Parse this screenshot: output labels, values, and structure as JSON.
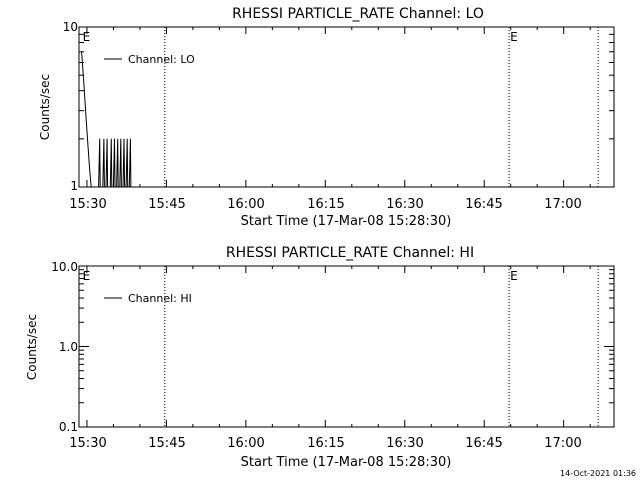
{
  "chart_data": [
    {
      "type": "line",
      "title": "RHESSI PARTICLE_RATE Channel: LO",
      "xlabel": "Start Time (17-Mar-08 15:28:30)",
      "ylabel": "Counts/sec",
      "y_scale": "log",
      "ylim": [
        1,
        10
      ],
      "y_ticks": [
        "1",
        "10"
      ],
      "x_ticks": [
        "15:30",
        "15:45",
        "16:00",
        "16:15",
        "16:30",
        "16:45",
        "17:00"
      ],
      "x_tick_minutes": [
        0,
        15,
        30,
        45,
        60,
        75,
        90
      ],
      "xlim_minutes": [
        -1.5,
        99.5
      ],
      "legend": "Channel: LO",
      "legend_position": "top-left",
      "markers": [
        {
          "label": "E",
          "minute": -1.0,
          "line": false
        },
        {
          "label": "",
          "minute": 14.7,
          "line": true
        },
        {
          "label": "E",
          "minute": 79.7,
          "line": true
        },
        {
          "label": "",
          "minute": 96.5,
          "line": true
        }
      ],
      "series": [
        {
          "x": [
            -1.0,
            -0.6,
            -0.2,
            0.2,
            0.5,
            0.8,
            1.0,
            1.1,
            2.2,
            2.4,
            2.5,
            3.0,
            3.2,
            3.3,
            3.6,
            3.8,
            3.9,
            4.4,
            4.6,
            4.7,
            5.0,
            5.2,
            5.3,
            5.6,
            5.8,
            5.9,
            6.2,
            6.4,
            6.5,
            6.8,
            7.0,
            7.1,
            7.4,
            7.6,
            7.7,
            8.0,
            8.2,
            8.3,
            9.8
          ],
          "y": [
            7,
            4.5,
            2.8,
            1.8,
            1.3,
            1,
            1,
            1,
            1,
            2,
            1,
            1,
            2,
            1,
            1,
            2,
            1,
            1,
            2,
            1,
            1,
            2,
            1,
            1,
            2,
            1,
            1,
            2,
            1,
            1,
            2,
            1,
            1,
            2,
            1,
            1,
            2,
            1,
            1
          ]
        }
      ]
    },
    {
      "type": "line",
      "title": "RHESSI PARTICLE_RATE Channel: HI",
      "xlabel": "Start Time (17-Mar-08 15:28:30)",
      "ylabel": "Counts/sec",
      "y_scale": "log",
      "ylim": [
        0.1,
        10
      ],
      "y_ticks": [
        "0.1",
        "1.0",
        "10.0"
      ],
      "x_ticks": [
        "15:30",
        "15:45",
        "16:00",
        "16:15",
        "16:30",
        "16:45",
        "17:00"
      ],
      "x_tick_minutes": [
        0,
        15,
        30,
        45,
        60,
        75,
        90
      ],
      "xlim_minutes": [
        -1.5,
        99.5
      ],
      "legend": "Channel: HI",
      "legend_position": "top-left",
      "markers": [
        {
          "label": "E",
          "minute": -1.0,
          "line": false
        },
        {
          "label": "",
          "minute": 14.7,
          "line": true
        },
        {
          "label": "E",
          "minute": 79.7,
          "line": true
        },
        {
          "label": "",
          "minute": 96.5,
          "line": true
        }
      ],
      "series": [
        {
          "x": [],
          "y": []
        }
      ]
    }
  ],
  "footer_timestamp": "14-Oct-2021 01:36"
}
